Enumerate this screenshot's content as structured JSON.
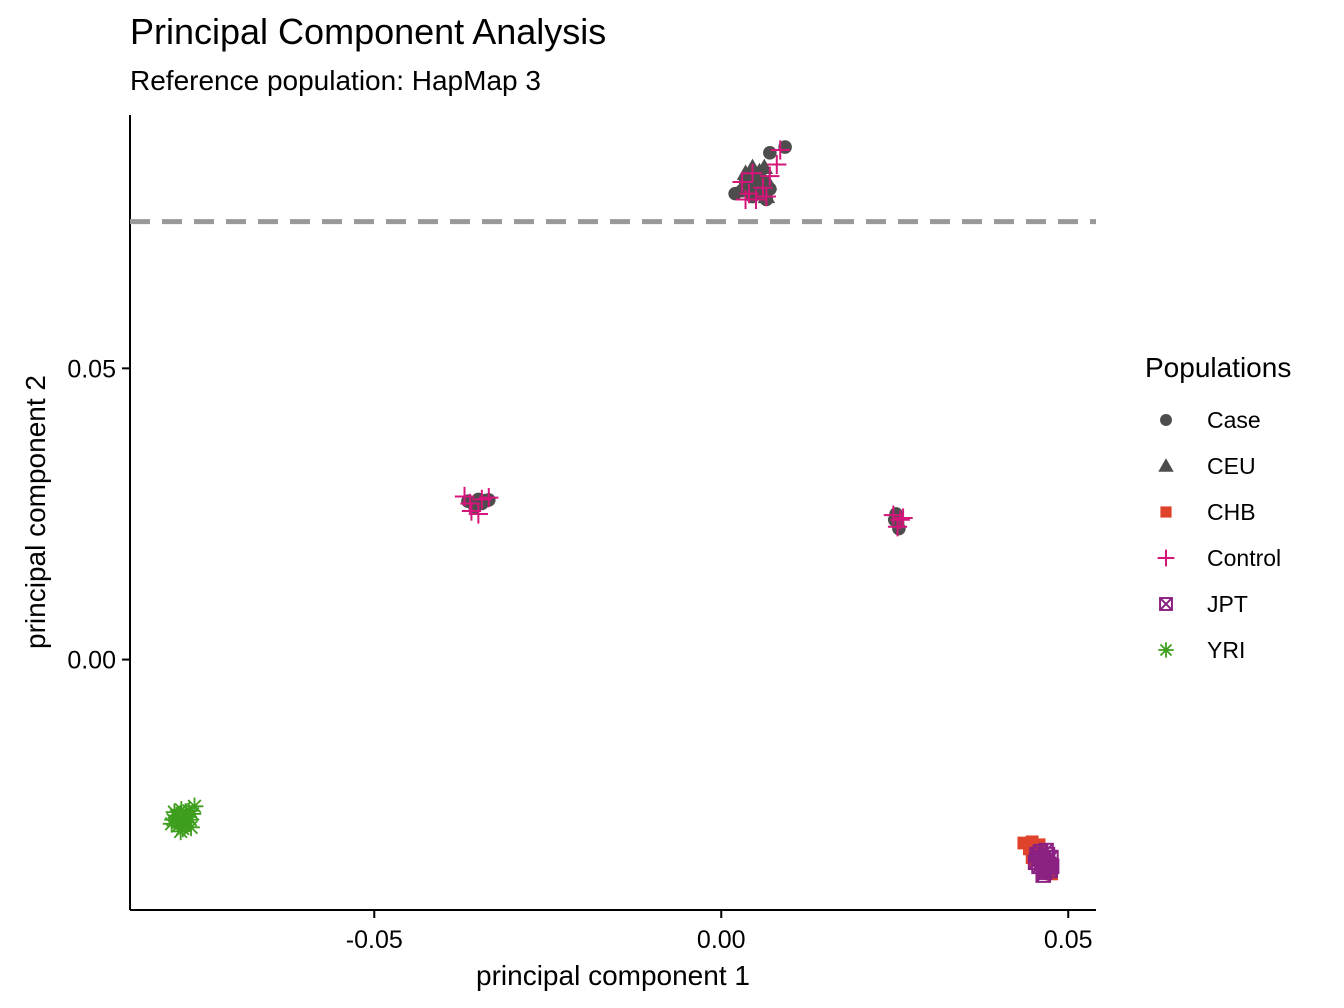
{
  "chart_data": {
    "type": "scatter",
    "title": "Principal Component Analysis",
    "subtitle": "Reference population: HapMap 3",
    "xlabel": "principal component 1",
    "ylabel": "principal component 2",
    "xlim": [
      -0.0852,
      0.054
    ],
    "ylim": [
      -0.043,
      0.0935
    ],
    "xticks": [
      -0.05,
      0.0,
      0.05
    ],
    "xtick_labels": [
      "-0.05",
      "0.00",
      "0.05"
    ],
    "yticks": [
      0.0,
      0.05
    ],
    "ytick_labels": [
      "0.00",
      "0.05"
    ],
    "grid": false,
    "hline": {
      "y": 0.0752,
      "style": "dashed",
      "color": "#999999"
    },
    "legend": {
      "title": "Populations",
      "placement": "right",
      "entries": [
        {
          "label": "Case",
          "shape": "circle",
          "color": "#4d4d4d"
        },
        {
          "label": "CEU",
          "shape": "triangle",
          "color": "#4d4d4d"
        },
        {
          "label": "CHB",
          "shape": "square",
          "color": "#e0432b"
        },
        {
          "label": "Control",
          "shape": "plus",
          "color": "#d4157a"
        },
        {
          "label": "JPT",
          "shape": "square-x",
          "color": "#8b2182"
        },
        {
          "label": "YRI",
          "shape": "asterisk",
          "color": "#3e9e1e"
        }
      ]
    },
    "series": [
      {
        "name": "CEU",
        "points": [
          [
            0.0035,
            0.0835
          ],
          [
            0.0045,
            0.0845
          ],
          [
            0.0055,
            0.0838
          ],
          [
            0.0062,
            0.0845
          ],
          [
            0.004,
            0.082
          ],
          [
            0.005,
            0.0815
          ],
          [
            0.006,
            0.0825
          ],
          [
            0.0068,
            0.0818
          ],
          [
            0.003,
            0.081
          ],
          [
            0.0045,
            0.08
          ],
          [
            0.0055,
            0.0805
          ],
          [
            0.0065,
            0.0795
          ],
          [
            0.0038,
            0.0828
          ],
          [
            0.0058,
            0.0832
          ],
          [
            0.0048,
            0.0808
          ]
        ]
      },
      {
        "name": "Case",
        "points": [
          [
            0.002,
            0.08
          ],
          [
            0.003,
            0.0805
          ],
          [
            0.004,
            0.0812
          ],
          [
            0.005,
            0.082
          ],
          [
            0.006,
            0.0815
          ],
          [
            0.007,
            0.0808
          ],
          [
            0.0045,
            0.0795
          ],
          [
            0.0065,
            0.079
          ],
          [
            0.0035,
            0.0825
          ],
          [
            0.0055,
            0.083
          ],
          [
            0.007,
            0.087
          ],
          [
            0.0092,
            0.088
          ],
          [
            0.0062,
            0.08
          ],
          [
            -0.0365,
            0.0272
          ],
          [
            -0.0358,
            0.027
          ],
          [
            -0.035,
            0.0275
          ],
          [
            -0.0355,
            0.0262
          ],
          [
            -0.034,
            0.0273
          ],
          [
            -0.0335,
            0.0274
          ],
          [
            -0.0345,
            0.0268
          ],
          [
            0.0252,
            0.025
          ],
          [
            0.0254,
            0.0235
          ],
          [
            0.0256,
            0.0225
          ],
          [
            0.025,
            0.024
          ]
        ]
      },
      {
        "name": "Control",
        "points": [
          [
            0.003,
            0.082
          ],
          [
            0.004,
            0.08
          ],
          [
            0.005,
            0.079
          ],
          [
            0.006,
            0.081
          ],
          [
            0.007,
            0.083
          ],
          [
            0.008,
            0.085
          ],
          [
            0.0085,
            0.0875
          ],
          [
            0.0045,
            0.0835
          ],
          [
            0.0035,
            0.079
          ],
          [
            0.0065,
            0.0795
          ],
          [
            -0.037,
            0.028
          ],
          [
            -0.036,
            0.0255
          ],
          [
            -0.035,
            0.025
          ],
          [
            -0.0345,
            0.0275
          ],
          [
            -0.0335,
            0.0278
          ],
          [
            -0.0362,
            0.0268
          ],
          [
            0.0248,
            0.0248
          ],
          [
            0.0258,
            0.024
          ],
          [
            0.0254,
            0.0228
          ],
          [
            0.0262,
            0.0243
          ]
        ]
      },
      {
        "name": "CHB",
        "points": [
          [
            0.0436,
            -0.0315
          ],
          [
            0.0448,
            -0.0313
          ],
          [
            0.0444,
            -0.0325
          ],
          [
            0.0456,
            -0.033
          ],
          [
            0.0452,
            -0.0345
          ],
          [
            0.0462,
            -0.035
          ],
          [
            0.047,
            -0.036
          ],
          [
            0.0476,
            -0.0368
          ],
          [
            0.0448,
            -0.034
          ],
          [
            0.0458,
            -0.0318
          ],
          [
            0.0472,
            -0.0348
          ],
          [
            0.0466,
            -0.0365
          ]
        ]
      },
      {
        "name": "JPT",
        "points": [
          [
            0.0455,
            -0.0335
          ],
          [
            0.0462,
            -0.034
          ],
          [
            0.047,
            -0.0345
          ],
          [
            0.0458,
            -0.0355
          ],
          [
            0.0465,
            -0.036
          ],
          [
            0.0472,
            -0.0352
          ],
          [
            0.046,
            -0.033
          ],
          [
            0.0468,
            -0.0328
          ],
          [
            0.0475,
            -0.034
          ],
          [
            0.0453,
            -0.0348
          ],
          [
            0.0466,
            -0.0365
          ],
          [
            0.0474,
            -0.0362
          ],
          [
            0.0462,
            -0.035
          ],
          [
            0.047,
            -0.0335
          ],
          [
            0.0457,
            -0.0342
          ],
          [
            0.0476,
            -0.0355
          ],
          [
            0.0464,
            -0.037
          ],
          [
            0.0468,
            -0.0356
          ]
        ]
      },
      {
        "name": "YRI",
        "points": [
          [
            -0.079,
            -0.0275
          ],
          [
            -0.0785,
            -0.0268
          ],
          [
            -0.078,
            -0.028
          ],
          [
            -0.0775,
            -0.0272
          ],
          [
            -0.0772,
            -0.0262
          ],
          [
            -0.0768,
            -0.027
          ],
          [
            -0.0782,
            -0.0285
          ],
          [
            -0.0776,
            -0.029
          ],
          [
            -0.077,
            -0.028
          ],
          [
            -0.0765,
            -0.0275
          ],
          [
            -0.0788,
            -0.0262
          ],
          [
            -0.0778,
            -0.0258
          ],
          [
            -0.0762,
            -0.0265
          ],
          [
            -0.0773,
            -0.0285
          ],
          [
            -0.0783,
            -0.0272
          ],
          [
            -0.0767,
            -0.026
          ],
          [
            -0.0759,
            -0.0252
          ],
          [
            -0.0792,
            -0.0282
          ],
          [
            -0.0779,
            -0.0295
          ],
          [
            -0.0764,
            -0.0288
          ]
        ]
      }
    ]
  }
}
